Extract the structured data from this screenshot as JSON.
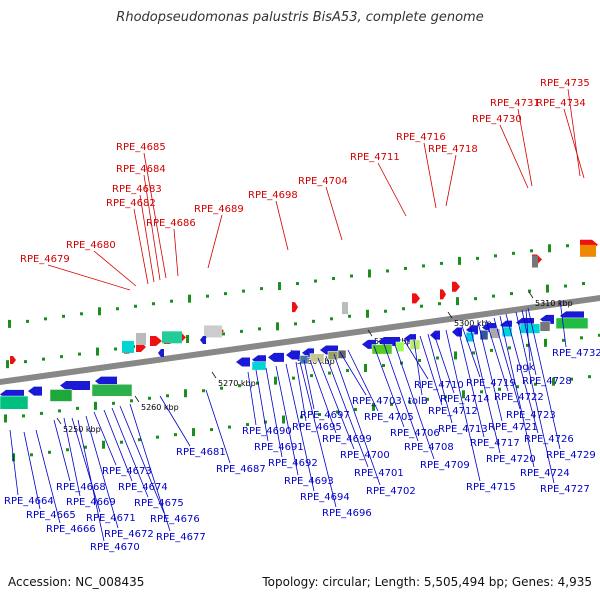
{
  "title": "Rhodopseudomonas palustris BisA53, complete genome",
  "accession": "Accession: NC_008435",
  "stats": "Topology: circular; Length: 5,505,494 bp; Genes: 4,935",
  "colors": {
    "forward_label": "#d40000",
    "reverse_label": "#0000cc",
    "ticks": "#1b8f1b",
    "backbone": "#888888"
  },
  "scale_labels": [
    "5250 kbp",
    "5260 kbp",
    "5270 kbp",
    "5280 kbp",
    "5290 kbp",
    "5300 kbp",
    "5310 kbp"
  ],
  "forward_genes": [
    "RPE_4679",
    "RPE_4680",
    "RPE_4682",
    "RPE_4683",
    "RPE_4684",
    "RPE_4685",
    "RPE_4686",
    "RPE_4689",
    "RPE_4698",
    "RPE_4704",
    "RPE_4711",
    "RPE_4716",
    "RPE_4718",
    "RPE_4730",
    "RPE_4731",
    "RPE_4734",
    "RPE_4735"
  ],
  "reverse_genes": [
    "RPE_4664",
    "RPE_4665",
    "RPE_4666",
    "RPE_4668",
    "RPE_4669",
    "RPE_4670",
    "RPE_4671",
    "RPE_4672",
    "RPE_4673",
    "RPE_4674",
    "RPE_4675",
    "RPE_4676",
    "RPE_4677",
    "RPE_4681",
    "RPE_4687",
    "RPE_4690",
    "RPE_4691",
    "RPE_4692",
    "RPE_4693",
    "RPE_4694",
    "RPE_4695",
    "RPE_4696",
    "RPE_4697",
    "RPE_4699",
    "RPE_4700",
    "RPE_4701",
    "RPE_4702",
    "RPE_4703",
    "RPE_4705",
    "RPE_4706",
    "RPE_4708",
    "RPE_4709",
    "RPE_4710",
    "RPE_4712",
    "RPE_4713",
    "RPE_4714",
    "RPE_4715",
    "RPE_4717",
    "RPE_4719",
    "RPE_4720",
    "RPE_4721",
    "RPE_4722",
    "RPE_4723",
    "RPE_4724",
    "RPE_4726",
    "RPE_4727",
    "RPE_4728",
    "RPE_4729",
    "RPE_4732",
    "tolB",
    "pgk"
  ]
}
